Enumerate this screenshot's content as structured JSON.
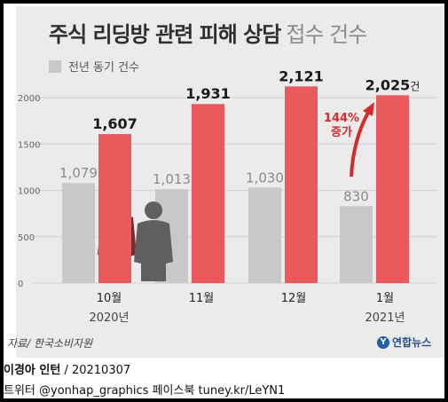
{
  "header": {
    "title_bold": "주식 리딩방 관련 피해 상담",
    "title_light": "접수 건수"
  },
  "legend": {
    "prev_label": "전년 동기 건수"
  },
  "chart_data": {
    "type": "bar",
    "title": "주식 리딩방 관련 피해 상담 접수 건수",
    "categories": [
      "10월",
      "11월",
      "12월",
      "1월"
    ],
    "year_labels": [
      "2020년",
      "2021년"
    ],
    "series": [
      {
        "name": "전년 동기 건수",
        "values": [
          1079,
          1013,
          1030,
          830
        ],
        "labels": [
          "1,079",
          "1,013",
          "1,030",
          "830"
        ],
        "color": "#c8c8c8"
      },
      {
        "values": [
          1607,
          1931,
          2121,
          2025
        ],
        "labels": [
          "1,607",
          "1,931",
          "2,121",
          "2,025"
        ],
        "color": "#e95a5c"
      }
    ],
    "unit_suffix": "건",
    "y_ticks": [
      0,
      500,
      1000,
      1500,
      2000
    ],
    "y_tick_labels": [
      "0",
      "500",
      "1000",
      "1500",
      "2000"
    ],
    "ylim": [
      0,
      2100
    ],
    "grid": true,
    "annotation": {
      "line1": "144%",
      "line2": "증가",
      "color": "#d62b2b"
    }
  },
  "footer": {
    "source": "자료/ 한국소비자원",
    "logo_mark": "Y",
    "logo_text": "연합뉴스",
    "credit_name": "이경아 인턴",
    "credit_date": " / 20210307",
    "social": "트위터 @yonhap_graphics  페이스북 tuney.kr/LeYN1"
  }
}
